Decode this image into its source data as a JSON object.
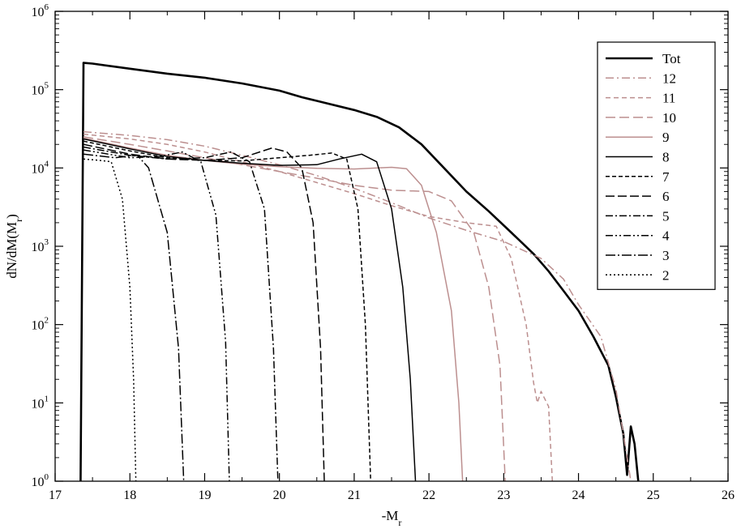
{
  "chart_data": {
    "type": "line",
    "xlabel": "-M",
    "xlabel_sub": "r",
    "ylabel": "dN/dM(M",
    "ylabel_sub": "r",
    "ylabel_close": ")",
    "xlim": [
      17,
      26
    ],
    "ylim": [
      1,
      1000000
    ],
    "y_scale": "log",
    "x_ticks": [
      17,
      18,
      19,
      20,
      21,
      22,
      23,
      24,
      25,
      26
    ],
    "y_ticks": [
      {
        "base": "10",
        "exp": "0",
        "value": 1
      },
      {
        "base": "10",
        "exp": "1",
        "value": 10
      },
      {
        "base": "10",
        "exp": "2",
        "value": 100
      },
      {
        "base": "10",
        "exp": "3",
        "value": 1000
      },
      {
        "base": "10",
        "exp": "4",
        "value": 10000
      },
      {
        "base": "10",
        "exp": "5",
        "value": 100000
      },
      {
        "base": "10",
        "exp": "6",
        "value": 1000000
      }
    ],
    "grid": false,
    "legend_position": "top-right",
    "colors": {
      "black": "#000000",
      "rose": "#bc8f8f"
    },
    "series": [
      {
        "name": "Tot",
        "color": "#000000",
        "width": 2.6,
        "dash": "",
        "points": [
          [
            17.34,
            1
          ],
          [
            17.38,
            220000
          ],
          [
            17.5,
            215000
          ],
          [
            18,
            185000
          ],
          [
            18.5,
            160000
          ],
          [
            19,
            142000
          ],
          [
            19.5,
            120000
          ],
          [
            20,
            97000
          ],
          [
            20.3,
            80000
          ],
          [
            20.5,
            72000
          ],
          [
            21,
            55000
          ],
          [
            21.3,
            45000
          ],
          [
            21.6,
            33000
          ],
          [
            21.9,
            20000
          ],
          [
            22.2,
            10000
          ],
          [
            22.5,
            5000
          ],
          [
            22.8,
            2800
          ],
          [
            23.1,
            1500
          ],
          [
            23.4,
            800
          ],
          [
            23.6,
            480
          ],
          [
            23.8,
            270
          ],
          [
            24,
            150
          ],
          [
            24.2,
            70
          ],
          [
            24.4,
            30
          ],
          [
            24.5,
            12
          ],
          [
            24.6,
            4
          ],
          [
            24.65,
            1.2
          ],
          [
            24.7,
            5
          ],
          [
            24.75,
            3
          ],
          [
            24.8,
            1
          ]
        ]
      },
      {
        "name": "12",
        "color": "#bc8f8f",
        "width": 1.5,
        "dash": "10,4,2,4",
        "points": [
          [
            17.38,
            29000
          ],
          [
            18,
            26000
          ],
          [
            18.5,
            23000
          ],
          [
            19,
            19000
          ],
          [
            19.5,
            14500
          ],
          [
            20,
            11000
          ],
          [
            20.5,
            8000
          ],
          [
            21,
            5500
          ],
          [
            21.5,
            3600
          ],
          [
            22,
            2300
          ],
          [
            22.5,
            1600
          ],
          [
            23,
            1150
          ],
          [
            23.5,
            700
          ],
          [
            23.8,
            380
          ],
          [
            24,
            180
          ],
          [
            24.3,
            70
          ],
          [
            24.5,
            15
          ],
          [
            24.6,
            4
          ],
          [
            24.7,
            1
          ]
        ]
      },
      {
        "name": "11",
        "color": "#bc8f8f",
        "width": 1.5,
        "dash": "6,4",
        "points": [
          [
            17.38,
            27000
          ],
          [
            18,
            23500
          ],
          [
            18.5,
            20000
          ],
          [
            19,
            16000
          ],
          [
            19.5,
            12000
          ],
          [
            20,
            9000
          ],
          [
            20.5,
            6500
          ],
          [
            21,
            4700
          ],
          [
            21.5,
            3300
          ],
          [
            22,
            2400
          ],
          [
            22.5,
            2000
          ],
          [
            22.9,
            1800
          ],
          [
            23.1,
            700
          ],
          [
            23.3,
            100
          ],
          [
            23.4,
            18
          ],
          [
            23.45,
            10
          ],
          [
            23.5,
            14
          ],
          [
            23.6,
            9
          ],
          [
            23.65,
            1
          ]
        ]
      },
      {
        "name": "10",
        "color": "#bc8f8f",
        "width": 1.5,
        "dash": "12,5",
        "points": [
          [
            17.38,
            25000
          ],
          [
            18,
            20000
          ],
          [
            18.5,
            16500
          ],
          [
            19,
            13500
          ],
          [
            19.5,
            11000
          ],
          [
            20,
            9000
          ],
          [
            20.5,
            7400
          ],
          [
            21,
            6000
          ],
          [
            21.5,
            5200
          ],
          [
            22,
            5000
          ],
          [
            22.3,
            3800
          ],
          [
            22.6,
            1500
          ],
          [
            22.8,
            300
          ],
          [
            22.95,
            30
          ],
          [
            23.02,
            1
          ]
        ]
      },
      {
        "name": "9",
        "color": "#bc8f8f",
        "width": 1.5,
        "dash": "",
        "points": [
          [
            17.38,
            24000
          ],
          [
            18,
            18000
          ],
          [
            18.5,
            14500
          ],
          [
            19,
            12500
          ],
          [
            19.5,
            11200
          ],
          [
            20,
            10400
          ],
          [
            20.5,
            9900
          ],
          [
            21,
            9700
          ],
          [
            21.5,
            10200
          ],
          [
            21.7,
            9800
          ],
          [
            21.9,
            6000
          ],
          [
            22.1,
            1500
          ],
          [
            22.3,
            150
          ],
          [
            22.4,
            10
          ],
          [
            22.45,
            1
          ]
        ]
      },
      {
        "name": "8",
        "color": "#000000",
        "width": 1.5,
        "dash": "",
        "points": [
          [
            17.38,
            23500
          ],
          [
            18,
            17500
          ],
          [
            18.5,
            14000
          ],
          [
            19,
            12500
          ],
          [
            19.5,
            11500
          ],
          [
            20,
            10800
          ],
          [
            20.5,
            11000
          ],
          [
            20.8,
            13000
          ],
          [
            21.1,
            15000
          ],
          [
            21.3,
            12000
          ],
          [
            21.5,
            3000
          ],
          [
            21.65,
            300
          ],
          [
            21.75,
            20
          ],
          [
            21.82,
            1
          ]
        ]
      },
      {
        "name": "7",
        "color": "#000000",
        "width": 1.5,
        "dash": "5,3",
        "points": [
          [
            17.38,
            22000
          ],
          [
            18,
            16500
          ],
          [
            18.5,
            13500
          ],
          [
            19,
            12500
          ],
          [
            19.5,
            12300
          ],
          [
            20,
            13500
          ],
          [
            20.4,
            14500
          ],
          [
            20.7,
            15500
          ],
          [
            20.9,
            13000
          ],
          [
            21.05,
            3000
          ],
          [
            21.15,
            100
          ],
          [
            21.22,
            1
          ]
        ]
      },
      {
        "name": "6",
        "color": "#000000",
        "width": 1.5,
        "dash": "11,4",
        "points": [
          [
            17.38,
            20000
          ],
          [
            18,
            15000
          ],
          [
            18.5,
            13000
          ],
          [
            19,
            12500
          ],
          [
            19.5,
            13500
          ],
          [
            19.9,
            18000
          ],
          [
            20.1,
            16000
          ],
          [
            20.3,
            10000
          ],
          [
            20.45,
            2000
          ],
          [
            20.55,
            50
          ],
          [
            20.6,
            1
          ]
        ]
      },
      {
        "name": "5",
        "color": "#000000",
        "width": 1.5,
        "dash": "9,3,2,3",
        "points": [
          [
            17.38,
            18500
          ],
          [
            18,
            14500
          ],
          [
            18.5,
            13000
          ],
          [
            19,
            13500
          ],
          [
            19.35,
            16000
          ],
          [
            19.6,
            12000
          ],
          [
            19.8,
            3000
          ],
          [
            19.92,
            50
          ],
          [
            19.98,
            1
          ]
        ]
      },
      {
        "name": "4",
        "color": "#000000",
        "width": 1.5,
        "dash": "9,3,2,3,2,3",
        "points": [
          [
            17.38,
            17000
          ],
          [
            18,
            13500
          ],
          [
            18.4,
            14000
          ],
          [
            18.7,
            16000
          ],
          [
            18.95,
            12000
          ],
          [
            19.15,
            2500
          ],
          [
            19.28,
            60
          ],
          [
            19.33,
            1
          ]
        ]
      },
      {
        "name": "3",
        "color": "#000000",
        "width": 1.5,
        "dash": "12,3,2,3",
        "points": [
          [
            17.38,
            15000
          ],
          [
            17.8,
            13500
          ],
          [
            18.1,
            14500
          ],
          [
            18.25,
            10000
          ],
          [
            18.5,
            1500
          ],
          [
            18.65,
            50
          ],
          [
            18.72,
            1
          ]
        ]
      },
      {
        "name": "2",
        "color": "#000000",
        "width": 1.5,
        "dash": "2,3",
        "points": [
          [
            17.38,
            13000
          ],
          [
            17.6,
            12500
          ],
          [
            17.75,
            12000
          ],
          [
            17.9,
            4000
          ],
          [
            18,
            300
          ],
          [
            18.05,
            20
          ],
          [
            18.08,
            1
          ]
        ]
      }
    ]
  }
}
